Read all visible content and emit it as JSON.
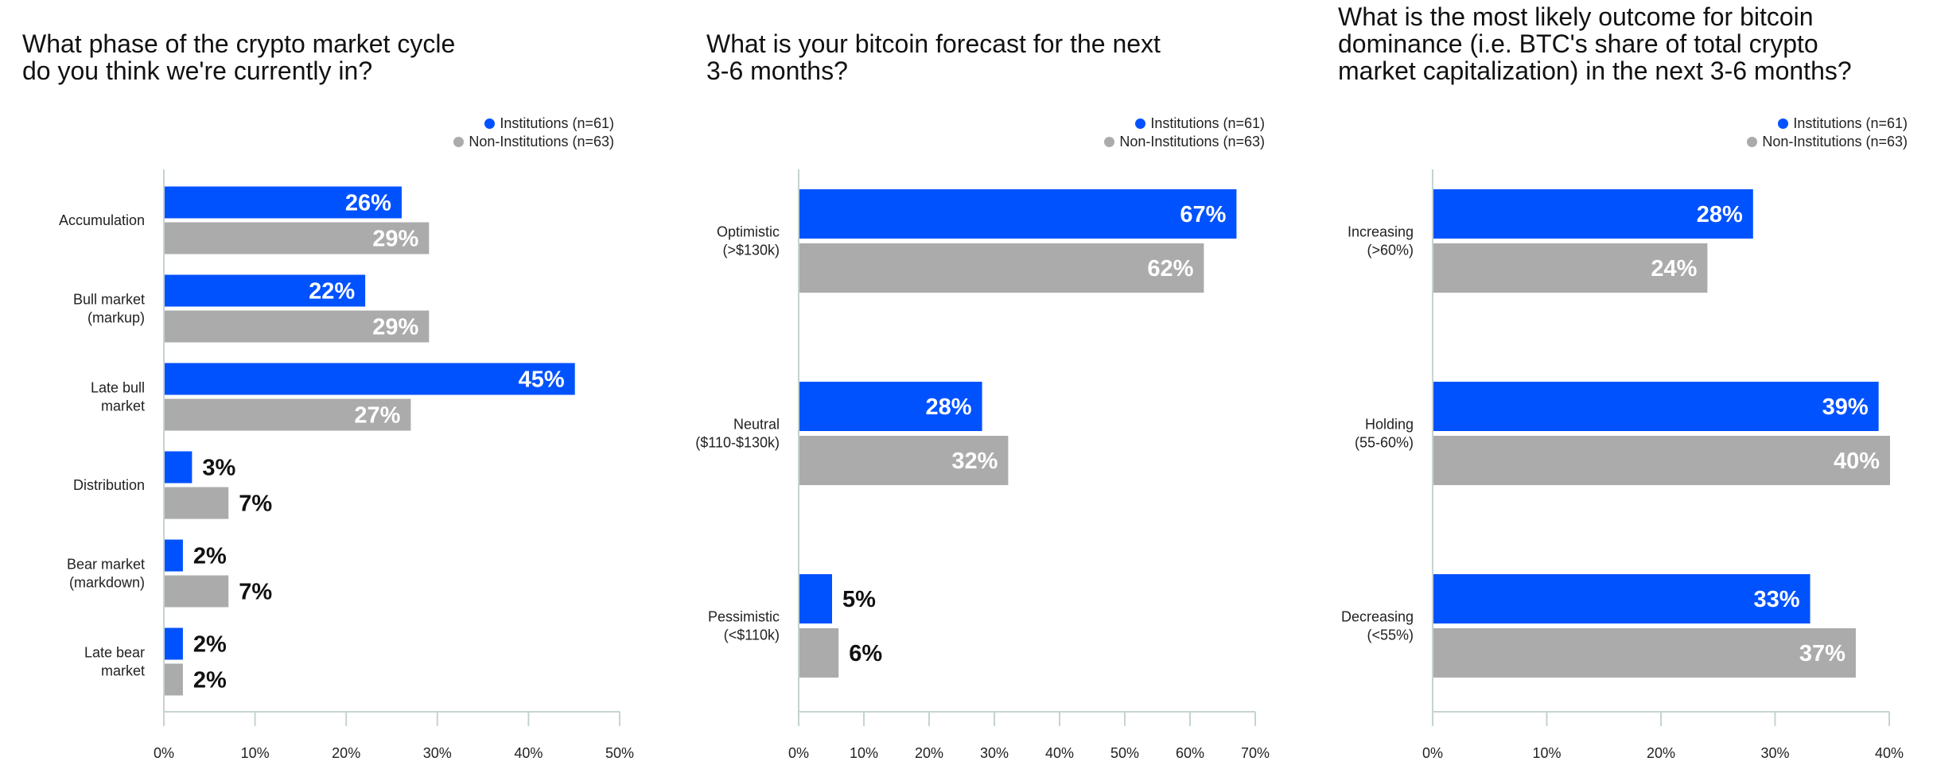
{
  "legend": {
    "series": [
      {
        "name": "Institutions (n=61)",
        "color": "#0052FF"
      },
      {
        "name": "Non-Institutions (n=63)",
        "color": "#ABABAB"
      }
    ]
  },
  "chart_data": [
    {
      "type": "bar",
      "orientation": "horizontal",
      "title": "What phase of the crypto market cycle\ndo you think we're currently in?",
      "categories": [
        "Accumulation",
        "Bull market\n(markup)",
        "Late bull\nmarket",
        "Distribution",
        "Bear market\n(markdown)",
        "Late bear\nmarket"
      ],
      "series": [
        {
          "name": "Institutions (n=61)",
          "values": [
            26,
            22,
            45,
            3,
            2,
            2
          ],
          "labels": [
            "26%",
            "22%",
            "45%",
            "3%",
            "2%",
            "2%"
          ]
        },
        {
          "name": "Non-Institutions (n=63)",
          "values": [
            29,
            29,
            27,
            7,
            7,
            2
          ],
          "labels": [
            "29%",
            "29%",
            "27%",
            "7%",
            "7%",
            "2%"
          ]
        }
      ],
      "xlim": [
        0,
        50
      ],
      "xticks": [
        "0%",
        "10%",
        "20%",
        "30%",
        "40%",
        "50%"
      ],
      "legend_position": "top-right",
      "grid": false
    },
    {
      "type": "bar",
      "orientation": "horizontal",
      "title": "What is your bitcoin forecast for the next\n3-6 months?",
      "categories": [
        "Optimistic\n(>$130k)",
        "Neutral\n($110-$130k)",
        "Pessimistic\n(<$110k)"
      ],
      "series": [
        {
          "name": "Institutions (n=61)",
          "values": [
            67,
            28,
            5
          ],
          "labels": [
            "67%",
            "28%",
            "5%"
          ]
        },
        {
          "name": "Non-Institutions (n=63)",
          "values": [
            62,
            32,
            6
          ],
          "labels": [
            "62%",
            "32%",
            "6%"
          ]
        }
      ],
      "xlim": [
        0,
        70
      ],
      "xticks": [
        "0%",
        "10%",
        "20%",
        "30%",
        "40%",
        "50%",
        "60%",
        "70%"
      ],
      "legend_position": "top-right",
      "grid": false
    },
    {
      "type": "bar",
      "orientation": "horizontal",
      "title": "What is the most likely outcome for bitcoin\ndominance (i.e. BTC's share of total crypto\nmarket capitalization) in the next 3-6 months?",
      "categories": [
        "Increasing\n(>60%)",
        "Holding\n(55-60%)",
        "Decreasing\n(<55%)"
      ],
      "series": [
        {
          "name": "Institutions (n=61)",
          "values": [
            28,
            39,
            33
          ],
          "labels": [
            "28%",
            "39%",
            "33%"
          ]
        },
        {
          "name": "Non-Institutions (n=63)",
          "values": [
            24,
            40,
            37
          ],
          "labels": [
            "24%",
            "40%",
            "37%"
          ]
        }
      ],
      "xlim": [
        0,
        40
      ],
      "xticks": [
        "0%",
        "10%",
        "20%",
        "30%",
        "40%"
      ],
      "legend_position": "top-right",
      "grid": false
    }
  ]
}
